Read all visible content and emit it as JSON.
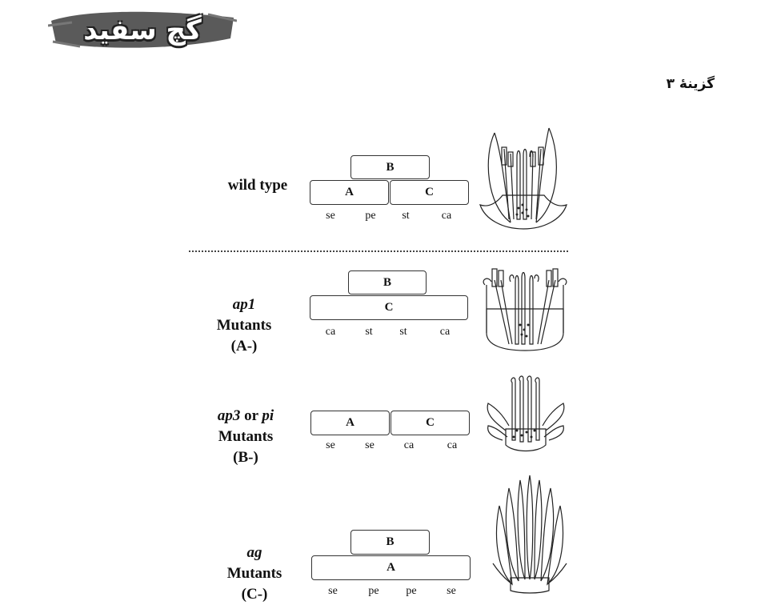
{
  "logo": {
    "text": "گچ سفید"
  },
  "answer_text": "گزینهٔ ۳",
  "rows": [
    {
      "label": {
        "pre_italic": "",
        "italic": "",
        "post": "wild type",
        "line2": "",
        "line3": ""
      },
      "boxes": {
        "top": "B",
        "bottom_left": "A",
        "bottom_right": "C"
      },
      "whorls": [
        "se",
        "pe",
        "st",
        "ca"
      ]
    },
    {
      "label": {
        "italic": "ap1",
        "line2": "Mutants",
        "line3": "(A-)"
      },
      "boxes": {
        "top": "B",
        "bottom": "C"
      },
      "whorls": [
        "ca",
        "st",
        "st",
        "ca"
      ]
    },
    {
      "label": {
        "italic_a": "ap3",
        "mid": " or ",
        "italic_b": "pi",
        "line2": "Mutants",
        "line3": "(B-)"
      },
      "boxes": {
        "left": "A",
        "right": "C"
      },
      "whorls": [
        "se",
        "se",
        "ca",
        "ca"
      ]
    },
    {
      "label": {
        "italic": "ag",
        "line2": "Mutants",
        "line3": "(C-)"
      },
      "boxes": {
        "top": "B",
        "bottom": "A"
      },
      "whorls": [
        "se",
        "pe",
        "pe",
        "se"
      ]
    }
  ],
  "colors": {
    "ink": "#222222",
    "logo_brush": "#555555",
    "background": "#ffffff"
  }
}
